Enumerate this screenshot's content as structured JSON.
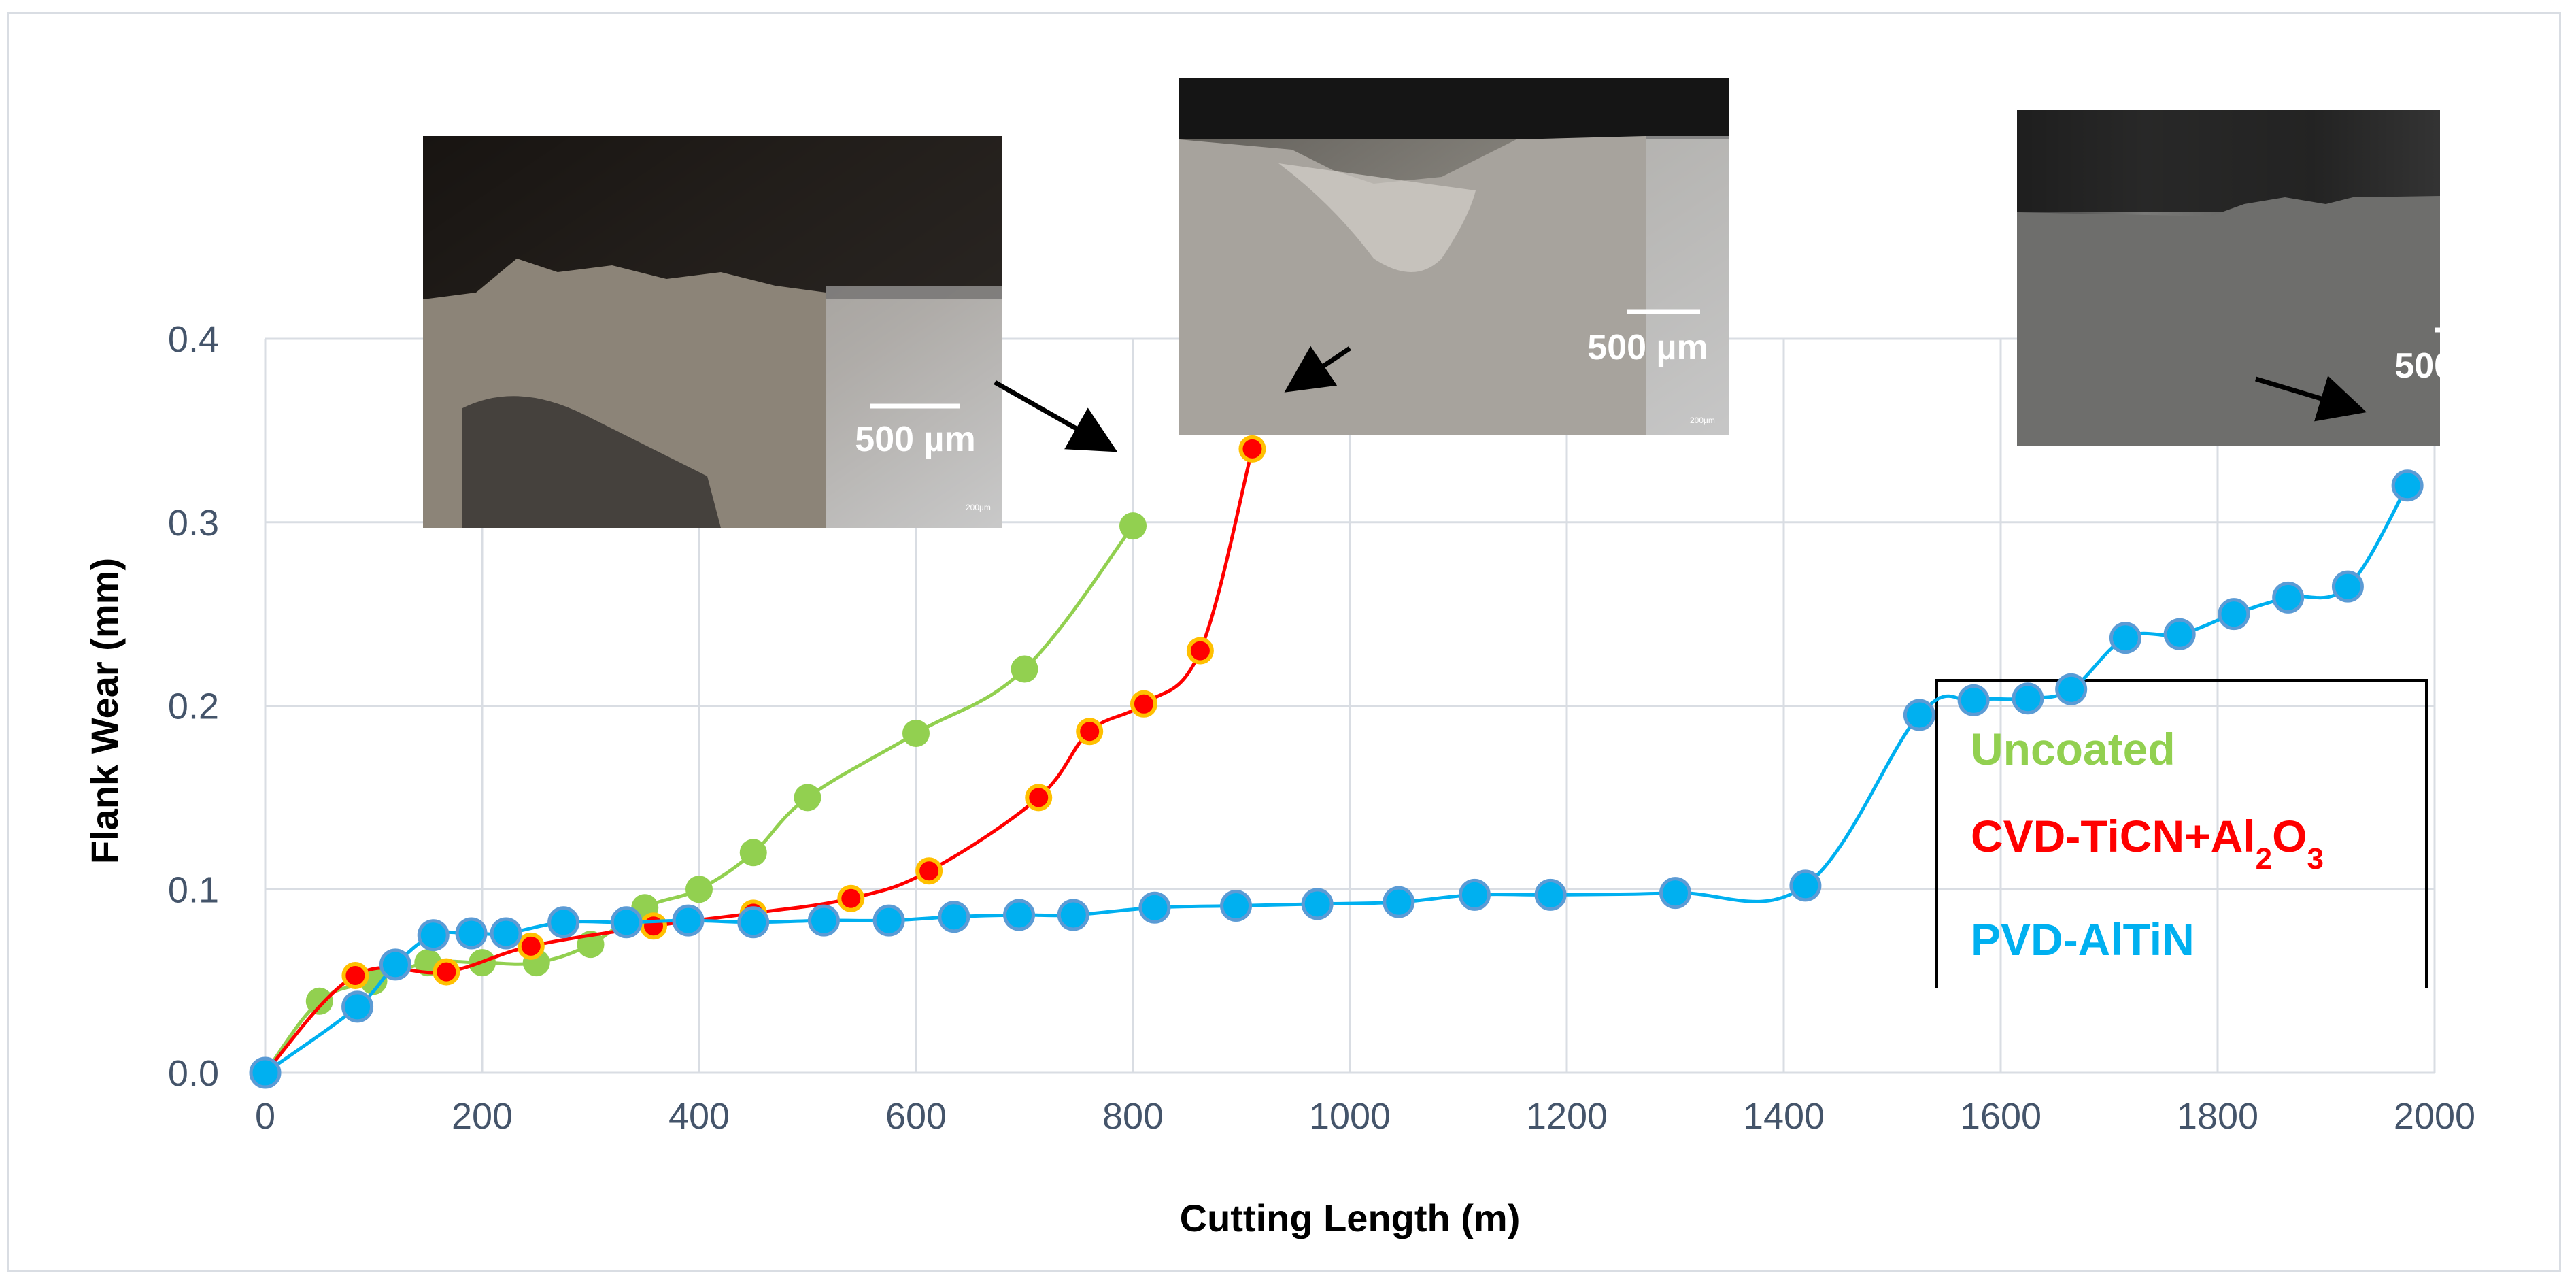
{
  "chart_data": {
    "type": "line",
    "xlabel": "Cutting Length (m)",
    "ylabel": "Flank Wear (mm)",
    "xlim": [
      0,
      2000
    ],
    "ylim": [
      0,
      0.4
    ],
    "xticks": [
      "0",
      "200",
      "400",
      "600",
      "800",
      "1000",
      "1200",
      "1400",
      "1600",
      "1800",
      "2000"
    ],
    "yticks": [
      "0.0",
      "0.1",
      "0.2",
      "0.3",
      "0.4"
    ],
    "grid": true,
    "legend_position": "right",
    "series": [
      {
        "name": "Uncoated",
        "color": "#92d050",
        "x": [
          0,
          50,
          100,
          150,
          200,
          250,
          300,
          350,
          400,
          450,
          500,
          600,
          700,
          800
        ],
        "y": [
          0.0,
          0.039,
          0.05,
          0.06,
          0.06,
          0.06,
          0.07,
          0.09,
          0.1,
          0.12,
          0.15,
          0.185,
          0.22,
          0.298
        ]
      },
      {
        "name": "CVD-TiCN+Al2O3",
        "color": "#ff0000",
        "x": [
          0,
          83,
          167,
          245,
          358,
          450,
          540,
          612,
          713,
          760,
          810,
          862,
          910
        ],
        "y": [
          0.0,
          0.053,
          0.055,
          0.069,
          0.08,
          0.087,
          0.095,
          0.11,
          0.15,
          0.186,
          0.201,
          0.23,
          0.34
        ]
      },
      {
        "name": "PVD-AlTiN",
        "color": "#00b0f0",
        "x": [
          0,
          85,
          120,
          155,
          190,
          222,
          275,
          333,
          390,
          450,
          515,
          575,
          635,
          695,
          745,
          820,
          895,
          970,
          1045,
          1115,
          1185,
          1300,
          1420,
          1525,
          1575,
          1625,
          1665,
          1715,
          1765,
          1815,
          1865,
          1920,
          1975
        ],
        "y": [
          0.0,
          0.036,
          0.059,
          0.075,
          0.076,
          0.076,
          0.082,
          0.082,
          0.083,
          0.082,
          0.083,
          0.083,
          0.085,
          0.086,
          0.086,
          0.09,
          0.091,
          0.092,
          0.093,
          0.097,
          0.097,
          0.098,
          0.102,
          0.195,
          0.203,
          0.204,
          0.209,
          0.237,
          0.239,
          0.25,
          0.259,
          0.265,
          0.32
        ]
      }
    ],
    "legend": {
      "items": [
        "Uncoated",
        "CVD-TiCN+Al",
        "PVD-AlTiN"
      ],
      "cvd_sub_al": "2",
      "cvd_mid": "O",
      "cvd_sub_o": "3"
    },
    "annotations": {
      "scale_label": "500 µm",
      "micro_label": "200µm"
    }
  }
}
